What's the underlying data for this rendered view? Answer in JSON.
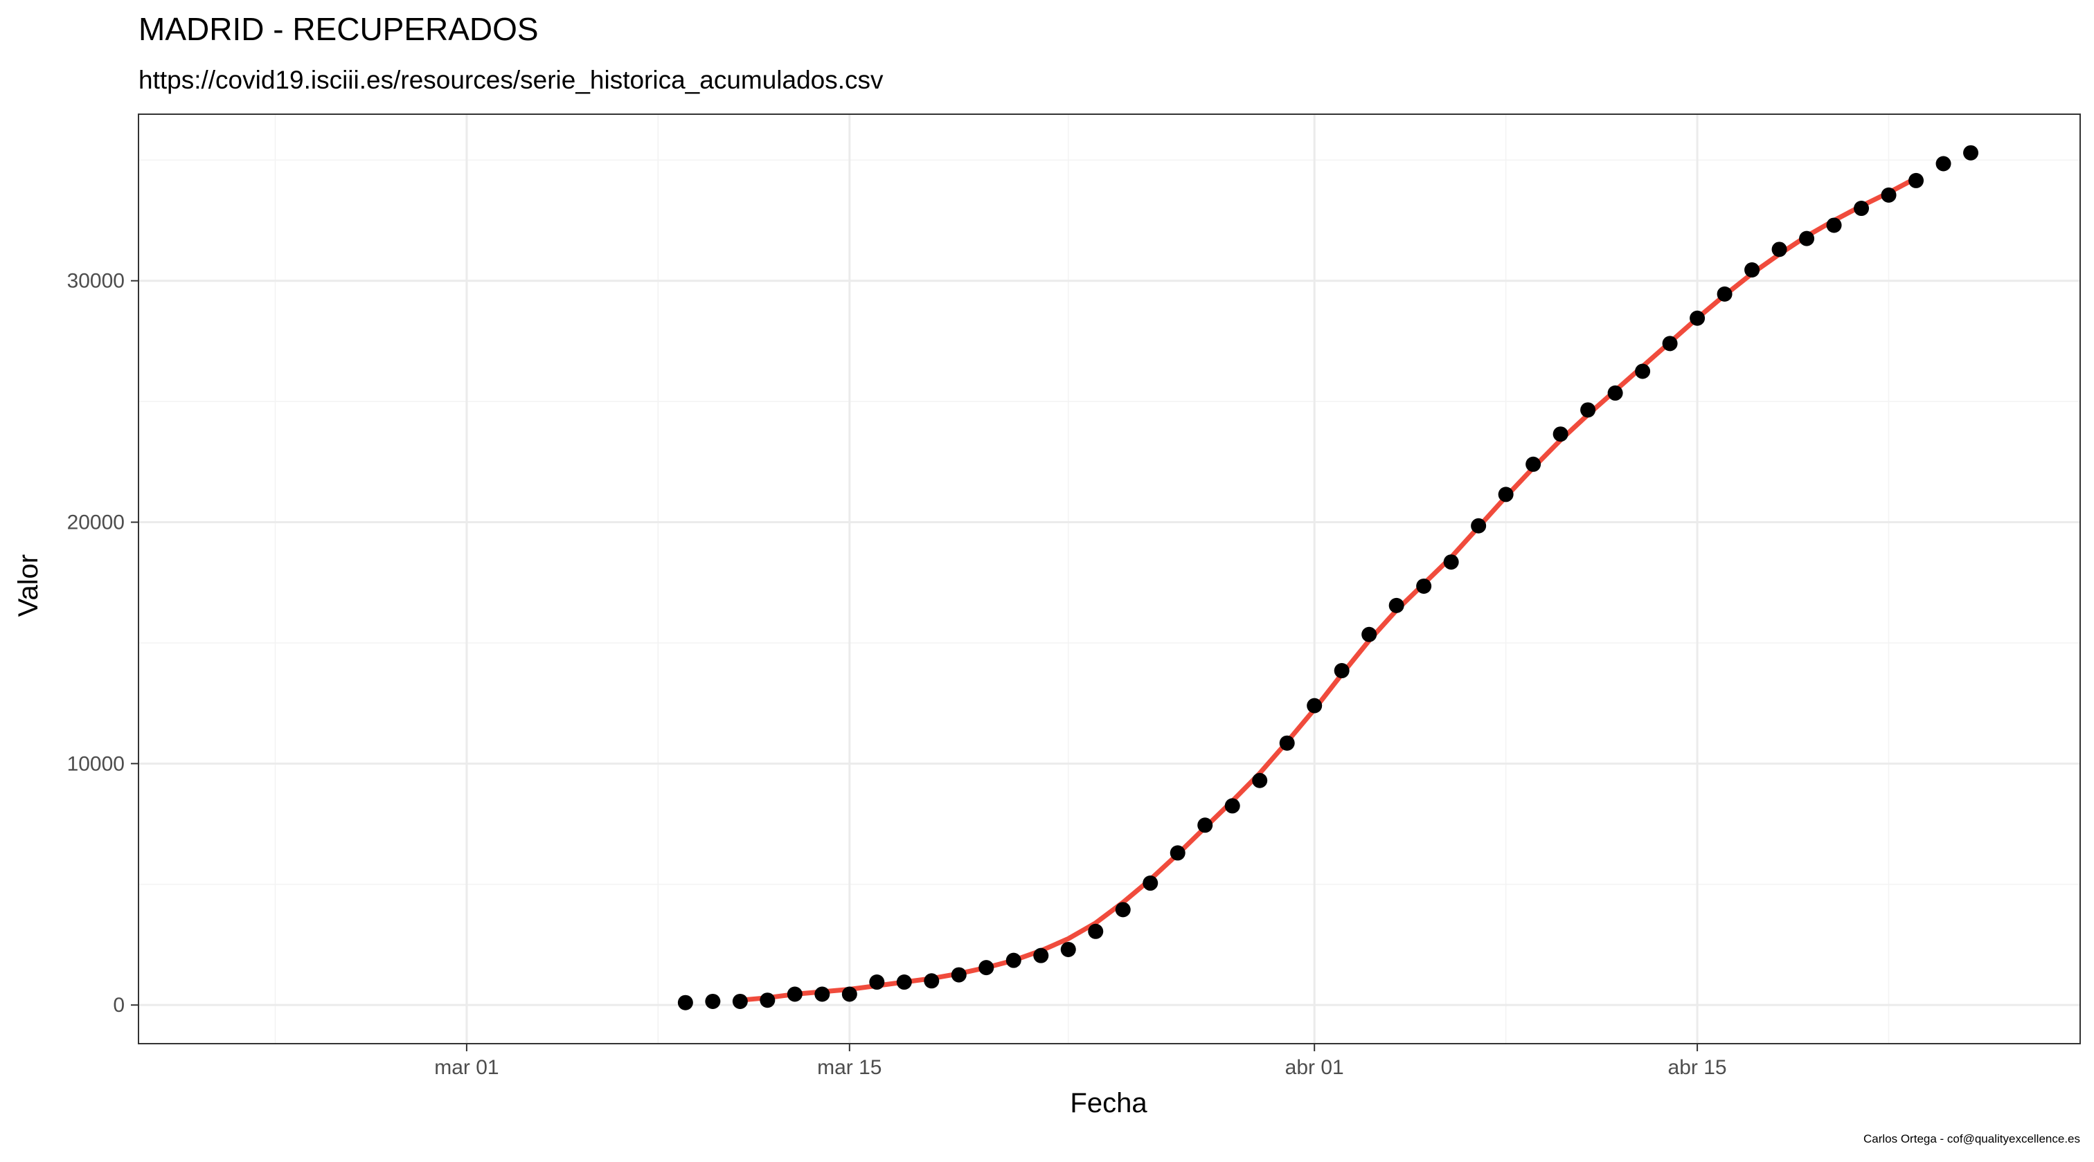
{
  "chart_data": {
    "type": "scatter",
    "title": "MADRID - RECUPERADOS",
    "subtitle": "https://covid19.isciii.es/resources/serie_historica_acumulados.csv",
    "xlabel": "Fecha",
    "ylabel": "Valor",
    "caption": "Carlos Ortega - cof@qualityexcellence.es",
    "x_range": [
      "2020-02-18",
      "2020-04-29"
    ],
    "y_range": [
      -1600,
      36900
    ],
    "x_ticks": [
      {
        "date": "2020-03-01",
        "label": "mar 01"
      },
      {
        "date": "2020-03-15",
        "label": "mar 15"
      },
      {
        "date": "2020-04-01",
        "label": "abr 01"
      },
      {
        "date": "2020-04-15",
        "label": "abr 15"
      }
    ],
    "x_minor_ticks": [
      "2020-02-23",
      "2020-03-08",
      "2020-03-08",
      "2020-03-23",
      "2020-04-08",
      "2020-04-22"
    ],
    "y_ticks": [
      0,
      10000,
      20000,
      30000
    ],
    "y_tick_labels": [
      "0",
      "10000",
      "20000",
      "30000"
    ],
    "y_minor_ticks": [
      5000,
      15000,
      25000,
      35000
    ],
    "grid": true,
    "colors": {
      "points": "#000000",
      "trend": "#f04b3c"
    },
    "series": [
      {
        "kind": "points",
        "x": [
          "2020-03-09",
          "2020-03-10",
          "2020-03-11",
          "2020-03-12",
          "2020-03-13",
          "2020-03-14",
          "2020-03-15",
          "2020-03-16",
          "2020-03-17",
          "2020-03-18",
          "2020-03-19",
          "2020-03-20",
          "2020-03-21",
          "2020-03-22",
          "2020-03-23",
          "2020-03-24",
          "2020-03-25",
          "2020-03-26",
          "2020-03-27",
          "2020-03-28",
          "2020-03-29",
          "2020-03-30",
          "2020-03-31",
          "2020-04-01",
          "2020-04-02",
          "2020-04-03",
          "2020-04-04",
          "2020-04-05",
          "2020-04-06",
          "2020-04-07",
          "2020-04-08",
          "2020-04-09",
          "2020-04-10",
          "2020-04-11",
          "2020-04-12",
          "2020-04-13",
          "2020-04-14",
          "2020-04-15",
          "2020-04-16",
          "2020-04-17",
          "2020-04-18",
          "2020-04-19",
          "2020-04-20",
          "2020-04-21",
          "2020-04-22",
          "2020-04-23",
          "2020-04-24",
          "2020-04-25"
        ],
        "y": [
          100,
          150,
          150,
          200,
          450,
          450,
          450,
          950,
          950,
          1000,
          1250,
          1550,
          1850,
          2050,
          2300,
          3050,
          3950,
          5050,
          6300,
          7450,
          8250,
          9300,
          10850,
          12400,
          13850,
          15350,
          16550,
          17350,
          18350,
          19850,
          21150,
          22400,
          23650,
          24650,
          25350,
          26250,
          27400,
          28450,
          29450,
          30450,
          31300,
          31750,
          32300,
          33000,
          33550,
          34150,
          34850,
          35300
        ]
      },
      {
        "kind": "line",
        "x": [
          "2020-03-11",
          "2020-03-12",
          "2020-03-13",
          "2020-03-14",
          "2020-03-15",
          "2020-03-16",
          "2020-03-17",
          "2020-03-18",
          "2020-03-19",
          "2020-03-20",
          "2020-03-21",
          "2020-03-22",
          "2020-03-23",
          "2020-03-24",
          "2020-03-25",
          "2020-03-26",
          "2020-03-27",
          "2020-03-28",
          "2020-03-29",
          "2020-03-30",
          "2020-03-31",
          "2020-04-01",
          "2020-04-02",
          "2020-04-03",
          "2020-04-04",
          "2020-04-05",
          "2020-04-06",
          "2020-04-07",
          "2020-04-08",
          "2020-04-09",
          "2020-04-10",
          "2020-04-11",
          "2020-04-12",
          "2020-04-13",
          "2020-04-14",
          "2020-04-15",
          "2020-04-16",
          "2020-04-17",
          "2020-04-18",
          "2020-04-19",
          "2020-04-20",
          "2020-04-21",
          "2020-04-22",
          "2020-04-23"
        ],
        "y": [
          200,
          300,
          450,
          550,
          650,
          800,
          950,
          1100,
          1300,
          1550,
          1850,
          2250,
          2750,
          3400,
          4250,
          5200,
          6250,
          7350,
          8450,
          9600,
          10900,
          12250,
          13700,
          15100,
          16350,
          17450,
          18550,
          19800,
          21050,
          22250,
          23400,
          24450,
          25450,
          26450,
          27450,
          28450,
          29400,
          30300,
          31100,
          31850,
          32500,
          33100,
          33650,
          34250
        ]
      }
    ]
  }
}
